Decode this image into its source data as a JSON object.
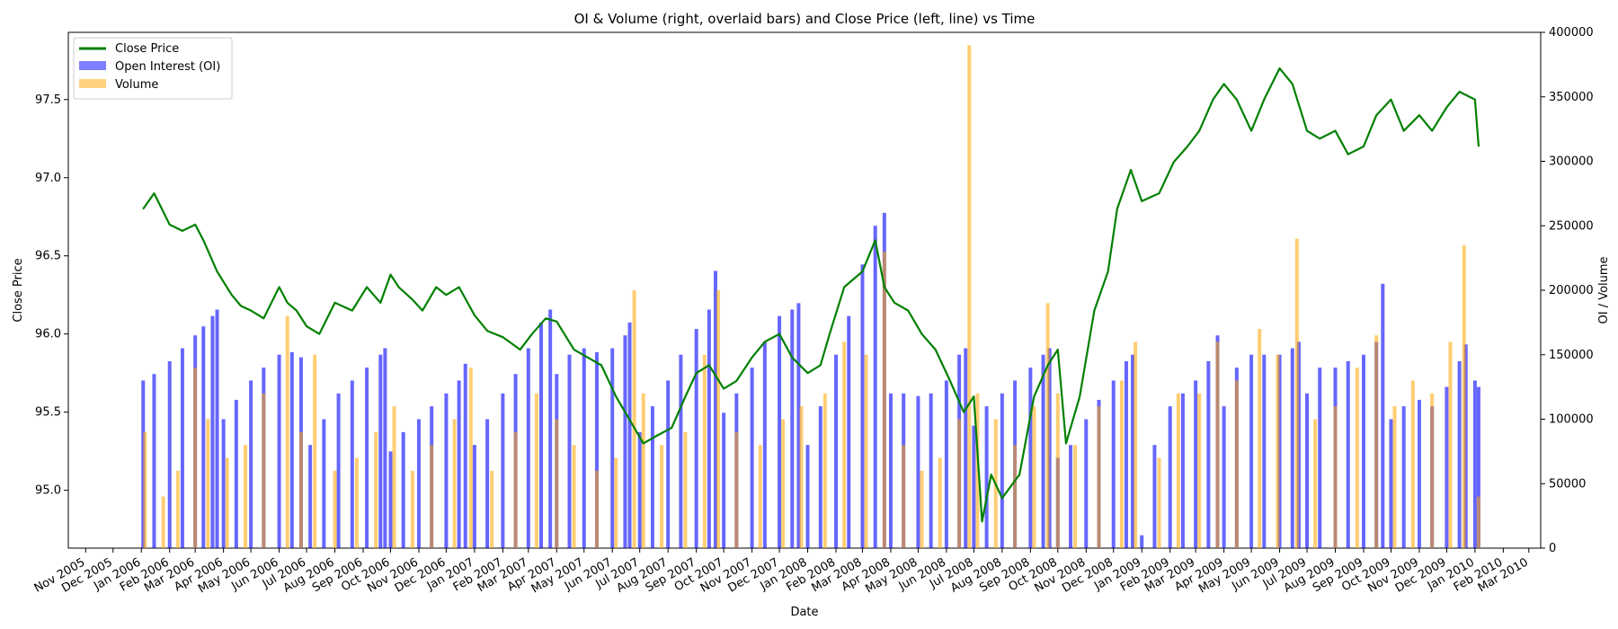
{
  "chart_data": {
    "type": "bar",
    "title": "OI & Volume (right, overlaid bars) and Close Price (left, line) vs Time",
    "xlabel": "Date",
    "ylabel_left": "Close Price",
    "ylabel_right": "OI / Volume",
    "x_ticks": [
      "Nov 2005",
      "Dec 2005",
      "Jan 2006",
      "Feb 2006",
      "Mar 2006",
      "Apr 2006",
      "May 2006",
      "Jun 2006",
      "Jul 2006",
      "Aug 2006",
      "Sep 2006",
      "Oct 2006",
      "Nov 2006",
      "Dec 2006",
      "Jan 2007",
      "Feb 2007",
      "Mar 2007",
      "Apr 2007",
      "May 2007",
      "Jun 2007",
      "Jul 2007",
      "Aug 2007",
      "Sep 2007",
      "Oct 2007",
      "Nov 2007",
      "Dec 2007",
      "Jan 2008",
      "Feb 2008",
      "Mar 2008",
      "Apr 2008",
      "May 2008",
      "Jun 2008",
      "Jul 2008",
      "Aug 2008",
      "Sep 2008",
      "Oct 2008",
      "Nov 2008",
      "Dec 2008",
      "Jan 2009",
      "Feb 2009",
      "Mar 2009",
      "Apr 2009",
      "May 2009",
      "Jun 2009",
      "Jul 2009",
      "Aug 2009",
      "Sep 2009",
      "Oct 2009",
      "Nov 2009",
      "Dec 2009",
      "Jan 2010",
      "Feb 2010",
      "Mar 2010"
    ],
    "x_range": [
      "2005-10-13",
      "2010-03-14"
    ],
    "ylim_left": [
      94.63,
      97.93
    ],
    "y_ticks_left": [
      "95.0",
      "95.5",
      "96.0",
      "96.5",
      "97.0",
      "97.5"
    ],
    "ylim_right": [
      0,
      400000
    ],
    "y_ticks_right": [
      "0",
      "50000",
      "100000",
      "150000",
      "200000",
      "250000",
      "300000",
      "350000",
      "400000"
    ],
    "legend_position": "top-left",
    "grid": false,
    "colors": {
      "close": "#008000",
      "oi": "#0000ff",
      "volume": "#ffa500",
      "left_axis": "#008000",
      "right_axis": "#0000ff"
    },
    "series": [
      {
        "name": "Close Price",
        "kind": "line",
        "axis": "left",
        "x": [
          "2006-01-03",
          "2006-01-15",
          "2006-02-01",
          "2006-02-15",
          "2006-03-01",
          "2006-03-10",
          "2006-03-25",
          "2006-04-10",
          "2006-04-20",
          "2006-05-01",
          "2006-05-15",
          "2006-06-01",
          "2006-06-10",
          "2006-06-20",
          "2006-07-01",
          "2006-07-15",
          "2006-08-01",
          "2006-08-20",
          "2006-09-05",
          "2006-09-20",
          "2006-10-01",
          "2006-10-10",
          "2006-10-25",
          "2006-11-05",
          "2006-11-20",
          "2006-12-01",
          "2006-12-15",
          "2007-01-01",
          "2007-01-15",
          "2007-02-01",
          "2007-02-20",
          "2007-03-05",
          "2007-03-20",
          "2007-04-01",
          "2007-04-20",
          "2007-05-05",
          "2007-05-20",
          "2007-06-05",
          "2007-06-20",
          "2007-07-05",
          "2007-07-20",
          "2007-08-05",
          "2007-08-20",
          "2007-09-01",
          "2007-09-15",
          "2007-10-01",
          "2007-10-15",
          "2007-11-01",
          "2007-11-15",
          "2007-12-01",
          "2007-12-15",
          "2008-01-01",
          "2008-01-15",
          "2008-01-25",
          "2008-02-10",
          "2008-03-01",
          "2008-03-15",
          "2008-03-25",
          "2008-04-05",
          "2008-04-20",
          "2008-05-05",
          "2008-05-20",
          "2008-06-05",
          "2008-06-20",
          "2008-07-01",
          "2008-07-10",
          "2008-07-20",
          "2008-08-01",
          "2008-08-20",
          "2008-09-05",
          "2008-09-20",
          "2008-10-01",
          "2008-10-10",
          "2008-10-25",
          "2008-11-10",
          "2008-11-25",
          "2008-12-05",
          "2008-12-20",
          "2009-01-01",
          "2009-01-20",
          "2009-02-05",
          "2009-02-20",
          "2009-03-05",
          "2009-03-20",
          "2009-04-01",
          "2009-04-15",
          "2009-05-01",
          "2009-05-15",
          "2009-06-01",
          "2009-06-15",
          "2009-07-01",
          "2009-07-15",
          "2009-08-01",
          "2009-08-15",
          "2009-09-01",
          "2009-09-15",
          "2009-10-01",
          "2009-10-15",
          "2009-11-01",
          "2009-11-15",
          "2009-12-01",
          "2009-12-15",
          "2010-01-01",
          "2010-01-05"
        ],
        "values": [
          96.8,
          96.9,
          96.7,
          96.66,
          96.7,
          96.6,
          96.4,
          96.25,
          96.18,
          96.15,
          96.1,
          96.3,
          96.2,
          96.15,
          96.05,
          96.0,
          96.2,
          96.15,
          96.3,
          96.2,
          96.38,
          96.3,
          96.22,
          96.15,
          96.3,
          96.25,
          96.3,
          96.12,
          96.02,
          95.98,
          95.9,
          96.0,
          96.1,
          96.08,
          95.9,
          95.85,
          95.8,
          95.6,
          95.45,
          95.3,
          95.35,
          95.4,
          95.6,
          95.75,
          95.8,
          95.65,
          95.7,
          95.85,
          95.95,
          96.0,
          95.85,
          95.75,
          95.8,
          96.0,
          96.3,
          96.4,
          96.6,
          96.3,
          96.2,
          96.15,
          96.0,
          95.9,
          95.7,
          95.5,
          95.6,
          94.8,
          95.1,
          94.95,
          95.1,
          95.6,
          95.8,
          95.9,
          95.3,
          95.6,
          96.15,
          96.4,
          96.8,
          97.05,
          96.85,
          96.9,
          97.1,
          97.2,
          97.3,
          97.5,
          97.6,
          97.5,
          97.3,
          97.5,
          97.7,
          97.6,
          97.3,
          97.25,
          97.3,
          97.15,
          97.2,
          97.4,
          97.5,
          97.3,
          97.4,
          97.3,
          97.45,
          97.55,
          97.5,
          97.2
        ]
      },
      {
        "name": "Open Interest (OI)",
        "kind": "bar",
        "axis": "right",
        "x": [
          "2006-01-03",
          "2006-01-15",
          "2006-02-01",
          "2006-02-15",
          "2006-03-01",
          "2006-03-10",
          "2006-03-20",
          "2006-03-25",
          "2006-04-01",
          "2006-04-15",
          "2006-05-01",
          "2006-05-15",
          "2006-06-01",
          "2006-06-15",
          "2006-06-25",
          "2006-07-05",
          "2006-07-20",
          "2006-08-05",
          "2006-08-20",
          "2006-09-05",
          "2006-09-20",
          "2006-09-25",
          "2006-10-01",
          "2006-10-15",
          "2006-11-01",
          "2006-11-15",
          "2006-12-01",
          "2006-12-15",
          "2006-12-22",
          "2007-01-01",
          "2007-01-15",
          "2007-02-01",
          "2007-02-15",
          "2007-03-01",
          "2007-03-15",
          "2007-03-25",
          "2007-04-01",
          "2007-04-15",
          "2007-05-01",
          "2007-05-15",
          "2007-06-01",
          "2007-06-15",
          "2007-06-20",
          "2007-07-01",
          "2007-07-15",
          "2007-08-01",
          "2007-08-15",
          "2007-09-01",
          "2007-09-15",
          "2007-09-22",
          "2007-10-01",
          "2007-10-15",
          "2007-11-01",
          "2007-11-15",
          "2007-12-01",
          "2007-12-15",
          "2007-12-22",
          "2008-01-01",
          "2008-01-15",
          "2008-02-01",
          "2008-02-15",
          "2008-03-01",
          "2008-03-15",
          "2008-03-25",
          "2008-04-01",
          "2008-04-15",
          "2008-05-01",
          "2008-05-15",
          "2008-06-01",
          "2008-06-15",
          "2008-06-22",
          "2008-07-01",
          "2008-07-15",
          "2008-08-01",
          "2008-08-15",
          "2008-09-01",
          "2008-09-15",
          "2008-09-22",
          "2008-10-01",
          "2008-10-15",
          "2008-11-01",
          "2008-11-15",
          "2008-12-01",
          "2008-12-15",
          "2008-12-22",
          "2009-01-01",
          "2009-01-15",
          "2009-02-01",
          "2009-02-15",
          "2009-03-01",
          "2009-03-15",
          "2009-03-25",
          "2009-04-01",
          "2009-04-15",
          "2009-05-01",
          "2009-05-15",
          "2009-06-01",
          "2009-06-15",
          "2009-06-22",
          "2009-07-01",
          "2009-07-15",
          "2009-08-01",
          "2009-08-15",
          "2009-09-01",
          "2009-09-15",
          "2009-09-22",
          "2009-10-01",
          "2009-10-15",
          "2009-11-01",
          "2009-11-15",
          "2009-12-01",
          "2009-12-15",
          "2009-12-22",
          "2010-01-01",
          "2010-01-05"
        ],
        "values": [
          130000,
          135000,
          145000,
          155000,
          165000,
          172000,
          180000,
          185000,
          100000,
          115000,
          130000,
          140000,
          150000,
          152000,
          148000,
          80000,
          100000,
          120000,
          130000,
          140000,
          150000,
          155000,
          75000,
          90000,
          100000,
          110000,
          120000,
          130000,
          143000,
          80000,
          100000,
          120000,
          135000,
          155000,
          175000,
          185000,
          135000,
          150000,
          155000,
          152000,
          155000,
          165000,
          175000,
          90000,
          110000,
          130000,
          150000,
          170000,
          185000,
          215000,
          105000,
          120000,
          140000,
          160000,
          180000,
          185000,
          190000,
          80000,
          110000,
          150000,
          180000,
          220000,
          250000,
          260000,
          120000,
          120000,
          118000,
          120000,
          130000,
          150000,
          155000,
          95000,
          110000,
          120000,
          130000,
          140000,
          150000,
          155000,
          70000,
          80000,
          100000,
          115000,
          130000,
          145000,
          150000,
          10000,
          80000,
          110000,
          120000,
          130000,
          145000,
          165000,
          110000,
          140000,
          150000,
          150000,
          150000,
          155000,
          160000,
          120000,
          140000,
          140000,
          145000,
          150000,
          160000,
          205000,
          100000,
          110000,
          115000,
          110000,
          125000,
          145000,
          158000,
          130000,
          125000
        ]
      },
      {
        "name": "Volume",
        "kind": "bar",
        "axis": "right",
        "x": [
          "2006-01-05",
          "2006-01-25",
          "2006-02-10",
          "2006-03-01",
          "2006-03-15",
          "2006-04-05",
          "2006-04-25",
          "2006-05-15",
          "2006-06-10",
          "2006-06-25",
          "2006-07-10",
          "2006-08-01",
          "2006-08-25",
          "2006-09-15",
          "2006-10-05",
          "2006-10-25",
          "2006-11-15",
          "2006-12-10",
          "2006-12-28",
          "2007-01-20",
          "2007-02-15",
          "2007-03-10",
          "2007-04-01",
          "2007-04-20",
          "2007-05-15",
          "2007-06-05",
          "2007-06-25",
          "2007-07-05",
          "2007-07-25",
          "2007-08-20",
          "2007-09-10",
          "2007-09-25",
          "2007-10-15",
          "2007-11-10",
          "2007-12-05",
          "2007-12-25",
          "2008-01-20",
          "2008-02-10",
          "2008-03-05",
          "2008-03-25",
          "2008-04-15",
          "2008-05-05",
          "2008-05-25",
          "2008-06-15",
          "2008-06-26",
          "2008-07-05",
          "2008-07-25",
          "2008-08-15",
          "2008-09-05",
          "2008-09-20",
          "2008-10-01",
          "2008-10-20",
          "2008-11-15",
          "2008-12-10",
          "2008-12-25",
          "2009-01-20",
          "2009-02-10",
          "2009-03-05",
          "2009-03-25",
          "2009-04-15",
          "2009-05-10",
          "2009-05-30",
          "2009-06-20",
          "2009-07-10",
          "2009-08-01",
          "2009-08-25",
          "2009-09-15",
          "2009-10-05",
          "2009-10-25",
          "2009-11-15",
          "2009-12-05",
          "2009-12-20",
          "2010-01-05"
        ],
        "values": [
          90000,
          40000,
          60000,
          140000,
          100000,
          70000,
          80000,
          120000,
          180000,
          90000,
          150000,
          60000,
          70000,
          90000,
          110000,
          60000,
          80000,
          100000,
          140000,
          60000,
          90000,
          120000,
          100000,
          80000,
          60000,
          70000,
          200000,
          120000,
          80000,
          90000,
          150000,
          200000,
          90000,
          80000,
          100000,
          110000,
          120000,
          160000,
          150000,
          230000,
          80000,
          60000,
          70000,
          100000,
          390000,
          120000,
          100000,
          80000,
          110000,
          190000,
          120000,
          80000,
          110000,
          130000,
          160000,
          70000,
          120000,
          120000,
          160000,
          130000,
          170000,
          150000,
          240000,
          100000,
          110000,
          140000,
          165000,
          110000,
          130000,
          120000,
          160000,
          235000,
          40000
        ]
      }
    ]
  }
}
